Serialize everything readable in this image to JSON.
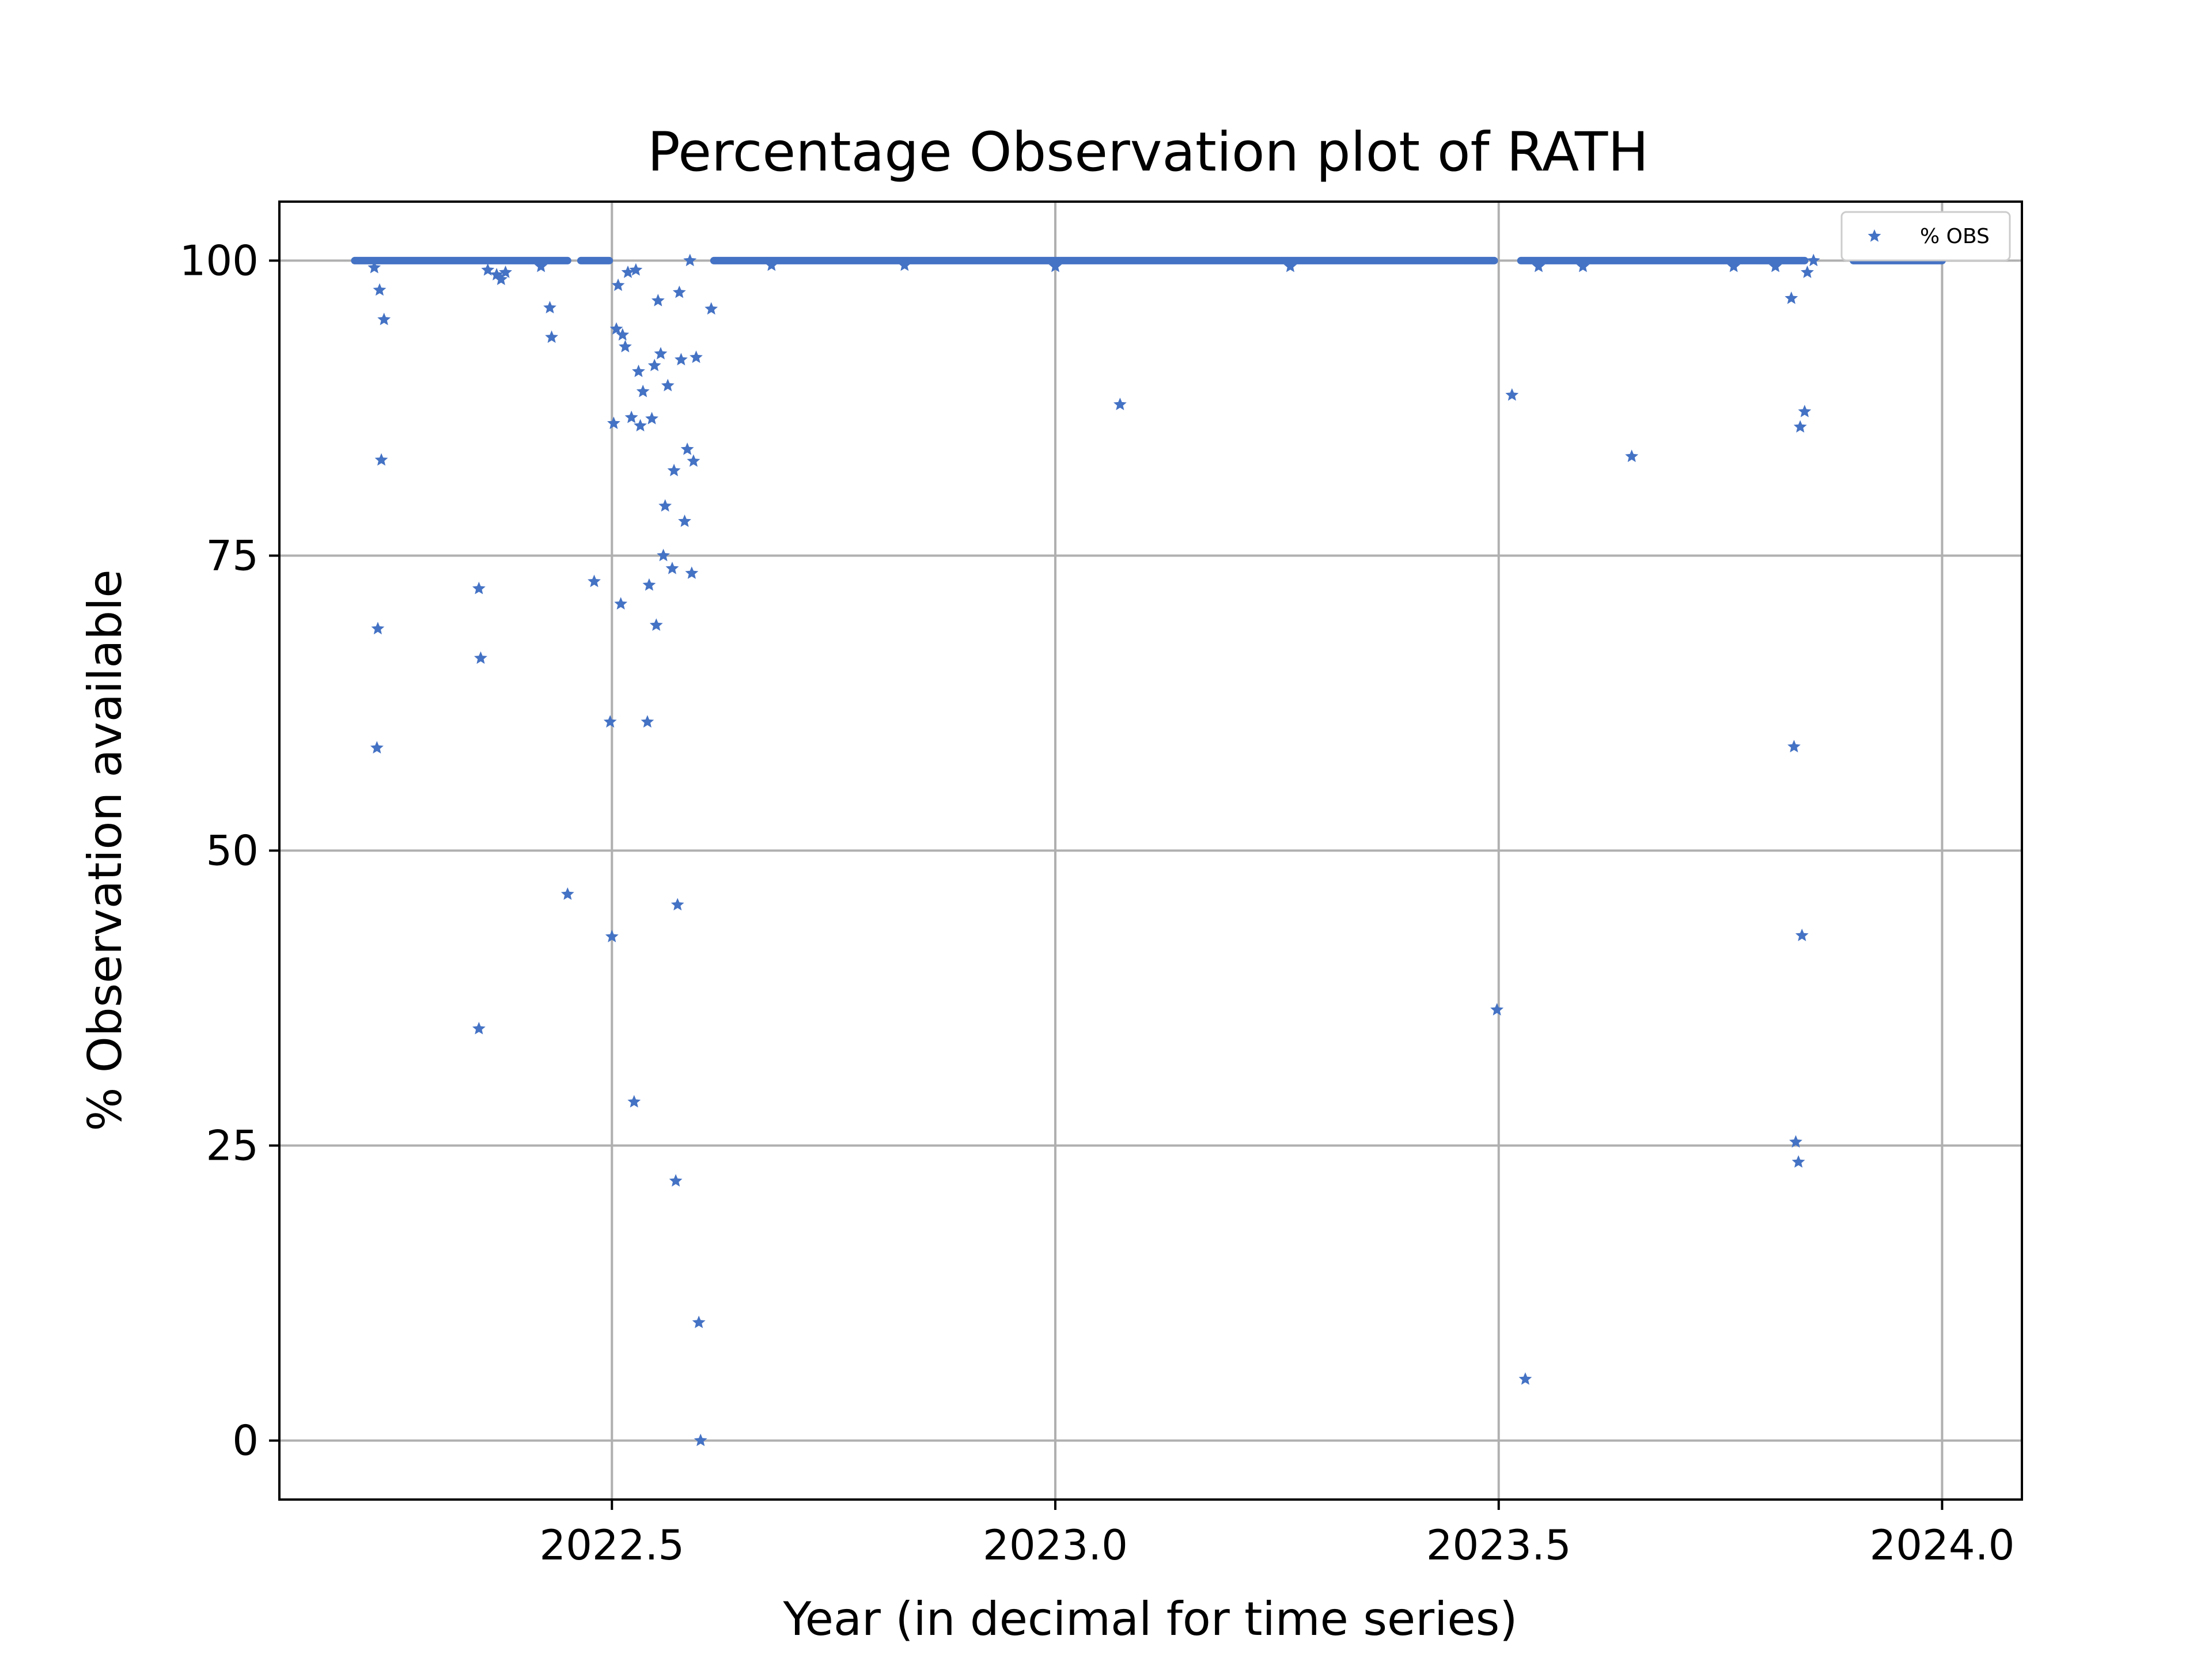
{
  "chart_data": {
    "type": "scatter",
    "title": "Percentage Observation plot of RATH",
    "xlabel": "Year (in decimal for time series)",
    "ylabel": "% Observation available",
    "xlim": [
      2022.125,
      2024.09
    ],
    "ylim": [
      -5,
      105
    ],
    "xticks": [
      2022.5,
      2023.0,
      2023.5,
      2024.0
    ],
    "xtick_labels": [
      "2022.5",
      "2023.0",
      "2023.5",
      "2024.0"
    ],
    "yticks": [
      0,
      25,
      50,
      75,
      100
    ],
    "ytick_labels": [
      "0",
      "25",
      "50",
      "75",
      "100"
    ],
    "grid": true,
    "legend_position": "top-right",
    "marker": "star",
    "series": [
      {
        "name": "% OBS",
        "color": "#4472c4",
        "baseline_segments": [
          {
            "x_start": 2022.21,
            "x_end": 2022.45,
            "y": 100
          },
          {
            "x_start": 2022.465,
            "x_end": 2022.497,
            "y": 100
          },
          {
            "x_start": 2022.615,
            "x_end": 2023.495,
            "y": 100
          },
          {
            "x_start": 2023.525,
            "x_end": 2023.845,
            "y": 100
          },
          {
            "x_start": 2023.9,
            "x_end": 2024.0,
            "y": 100
          }
        ],
        "points": [
          {
            "x": 2022.235,
            "y": 58.7
          },
          {
            "x": 2022.236,
            "y": 68.8
          },
          {
            "x": 2022.238,
            "y": 97.5
          },
          {
            "x": 2022.24,
            "y": 83.1
          },
          {
            "x": 2022.243,
            "y": 95.0
          },
          {
            "x": 2022.232,
            "y": 99.4
          },
          {
            "x": 2022.35,
            "y": 72.2
          },
          {
            "x": 2022.352,
            "y": 66.3
          },
          {
            "x": 2022.35,
            "y": 34.9
          },
          {
            "x": 2022.36,
            "y": 99.2
          },
          {
            "x": 2022.37,
            "y": 98.8
          },
          {
            "x": 2022.375,
            "y": 98.4
          },
          {
            "x": 2022.38,
            "y": 99.0
          },
          {
            "x": 2022.42,
            "y": 99.5
          },
          {
            "x": 2022.43,
            "y": 96.0
          },
          {
            "x": 2022.432,
            "y": 93.5
          },
          {
            "x": 2022.45,
            "y": 46.3
          },
          {
            "x": 2022.48,
            "y": 72.8
          },
          {
            "x": 2022.498,
            "y": 60.9
          },
          {
            "x": 2022.5,
            "y": 42.7
          },
          {
            "x": 2022.502,
            "y": 86.2
          },
          {
            "x": 2022.505,
            "y": 94.2
          },
          {
            "x": 2022.507,
            "y": 97.9
          },
          {
            "x": 2022.51,
            "y": 70.9
          },
          {
            "x": 2022.512,
            "y": 93.7
          },
          {
            "x": 2022.515,
            "y": 92.7
          },
          {
            "x": 2022.518,
            "y": 99.0
          },
          {
            "x": 2022.522,
            "y": 86.7
          },
          {
            "x": 2022.525,
            "y": 28.7
          },
          {
            "x": 2022.527,
            "y": 99.2
          },
          {
            "x": 2022.53,
            "y": 90.6
          },
          {
            "x": 2022.532,
            "y": 86.0
          },
          {
            "x": 2022.535,
            "y": 88.9
          },
          {
            "x": 2022.54,
            "y": 60.9
          },
          {
            "x": 2022.542,
            "y": 72.5
          },
          {
            "x": 2022.545,
            "y": 86.6
          },
          {
            "x": 2022.548,
            "y": 91.1
          },
          {
            "x": 2022.55,
            "y": 69.1
          },
          {
            "x": 2022.552,
            "y": 96.6
          },
          {
            "x": 2022.555,
            "y": 92.1
          },
          {
            "x": 2022.558,
            "y": 75.0
          },
          {
            "x": 2022.56,
            "y": 79.2
          },
          {
            "x": 2022.563,
            "y": 89.4
          },
          {
            "x": 2022.568,
            "y": 73.9
          },
          {
            "x": 2022.57,
            "y": 82.2
          },
          {
            "x": 2022.572,
            "y": 22.0
          },
          {
            "x": 2022.574,
            "y": 45.4
          },
          {
            "x": 2022.576,
            "y": 97.3
          },
          {
            "x": 2022.578,
            "y": 91.6
          },
          {
            "x": 2022.582,
            "y": 77.9
          },
          {
            "x": 2022.585,
            "y": 84.0
          },
          {
            "x": 2022.588,
            "y": 100.0
          },
          {
            "x": 2022.59,
            "y": 73.5
          },
          {
            "x": 2022.592,
            "y": 83.0
          },
          {
            "x": 2022.595,
            "y": 91.8
          },
          {
            "x": 2022.598,
            "y": 10.0
          },
          {
            "x": 2022.6,
            "y": 0.0
          },
          {
            "x": 2022.612,
            "y": 95.9
          },
          {
            "x": 2022.68,
            "y": 99.6
          },
          {
            "x": 2022.83,
            "y": 99.6
          },
          {
            "x": 2023.0,
            "y": 99.5
          },
          {
            "x": 2023.073,
            "y": 87.8
          },
          {
            "x": 2023.265,
            "y": 99.5
          },
          {
            "x": 2023.498,
            "y": 36.5
          },
          {
            "x": 2023.515,
            "y": 88.6
          },
          {
            "x": 2023.53,
            "y": 5.2
          },
          {
            "x": 2023.545,
            "y": 99.5
          },
          {
            "x": 2023.595,
            "y": 99.5
          },
          {
            "x": 2023.65,
            "y": 83.4
          },
          {
            "x": 2023.765,
            "y": 99.5
          },
          {
            "x": 2023.812,
            "y": 99.5
          },
          {
            "x": 2023.83,
            "y": 96.8
          },
          {
            "x": 2023.833,
            "y": 58.8
          },
          {
            "x": 2023.835,
            "y": 25.3
          },
          {
            "x": 2023.838,
            "y": 23.6
          },
          {
            "x": 2023.84,
            "y": 85.9
          },
          {
            "x": 2023.842,
            "y": 42.8
          },
          {
            "x": 2023.845,
            "y": 87.2
          },
          {
            "x": 2023.848,
            "y": 99.0
          },
          {
            "x": 2023.855,
            "y": 100.0
          }
        ]
      }
    ]
  },
  "colors": {
    "marker": "#4472c4",
    "grid": "#b0b0b0",
    "axes": "#000000",
    "background": "#ffffff"
  }
}
